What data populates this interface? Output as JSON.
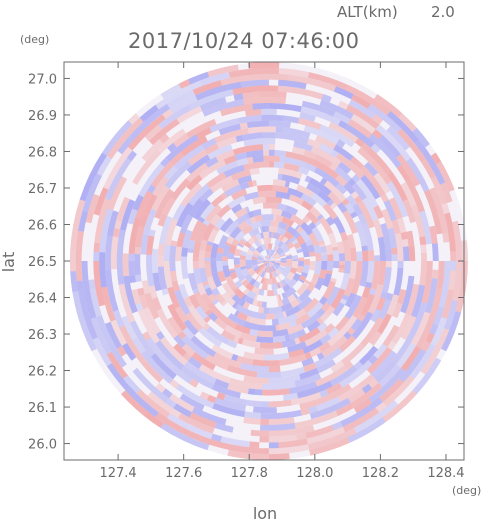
{
  "header": {
    "altitude_label": "ALT(km)",
    "altitude_value": "2.0",
    "timestamp": "2017/10/24 07:46:00"
  },
  "chart_data": {
    "type": "heatmap",
    "title": "2017/10/24 07:46:00",
    "xlabel": "lon",
    "ylabel": "lat",
    "x_unit": "(deg)",
    "y_unit": "(deg)",
    "xlim": [
      127.235,
      128.455
    ],
    "ylim": [
      25.955,
      27.045
    ],
    "x_ticks": [
      127.4,
      127.6,
      127.8,
      128.0,
      128.2,
      128.4
    ],
    "x_tick_labels": [
      "127.4",
      "127.6",
      "127.8",
      "128.0",
      "128.2",
      "128.4"
    ],
    "y_ticks": [
      26.0,
      26.1,
      26.2,
      26.3,
      26.4,
      26.5,
      26.6,
      26.7,
      26.8,
      26.9,
      27.0
    ],
    "y_tick_labels": [
      "26.0",
      "26.1",
      "26.2",
      "26.3",
      "26.4",
      "26.5",
      "26.6",
      "26.7",
      "26.8",
      "26.9",
      "27.0"
    ],
    "radar_center": [
      127.86,
      26.5
    ],
    "radar_range_deg_lat": 0.545,
    "colors": {
      "positive": "#f08a8a",
      "negative": "#8a8af0",
      "frame": "#6b6b6b"
    }
  }
}
